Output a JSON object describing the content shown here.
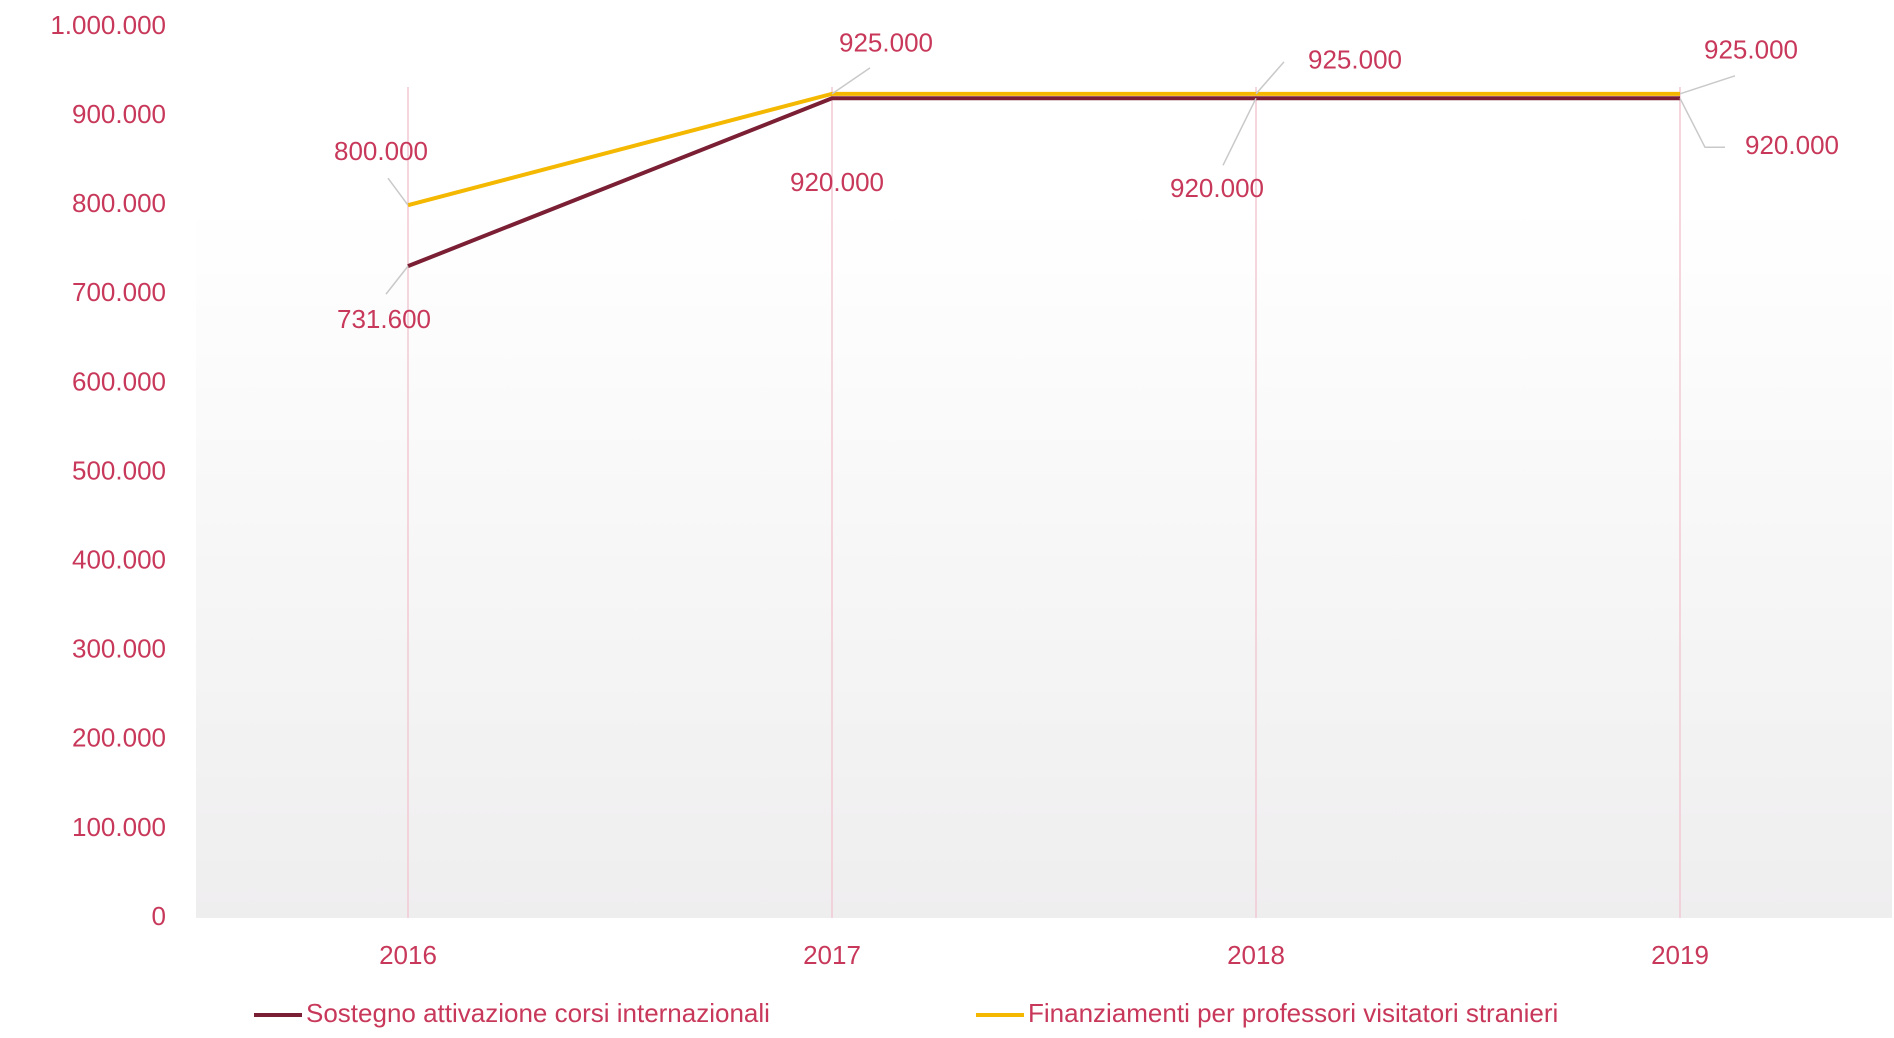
{
  "chart_data": {
    "type": "line",
    "categories": [
      "2016",
      "2017",
      "2018",
      "2019"
    ],
    "series": [
      {
        "name": "Sostegno attivazione corsi internazionali",
        "color": "#7b1f35",
        "values": [
          731600,
          920000,
          920000,
          920000
        ],
        "value_labels": [
          "731.600",
          "920.000",
          "920.000",
          "920.000"
        ]
      },
      {
        "name": "Finanziamenti per professori visitatori stranieri",
        "color": "#f4b800",
        "values": [
          800000,
          925000,
          925000,
          925000
        ],
        "value_labels": [
          "800.000",
          "925.000",
          "925.000",
          "925.000"
        ]
      }
    ],
    "ylim": [
      0,
      1000000
    ],
    "yticks": [
      0,
      {
        "value": 100000,
        "label": "100.000"
      },
      {
        "value": 200000,
        "label": "200.000"
      },
      {
        "value": 300000,
        "label": "300.000"
      },
      {
        "value": 400000,
        "label": "400.000"
      },
      {
        "value": 500000,
        "label": "500.000"
      },
      {
        "value": 600000,
        "label": "600.000"
      },
      {
        "value": 700000,
        "label": "700.000"
      },
      {
        "value": 800000,
        "label": "800.000"
      },
      {
        "value": 900000,
        "label": "900.000"
      },
      {
        "value": 1000000,
        "label": "1.000.000"
      }
    ],
    "legend": "bottom"
  }
}
